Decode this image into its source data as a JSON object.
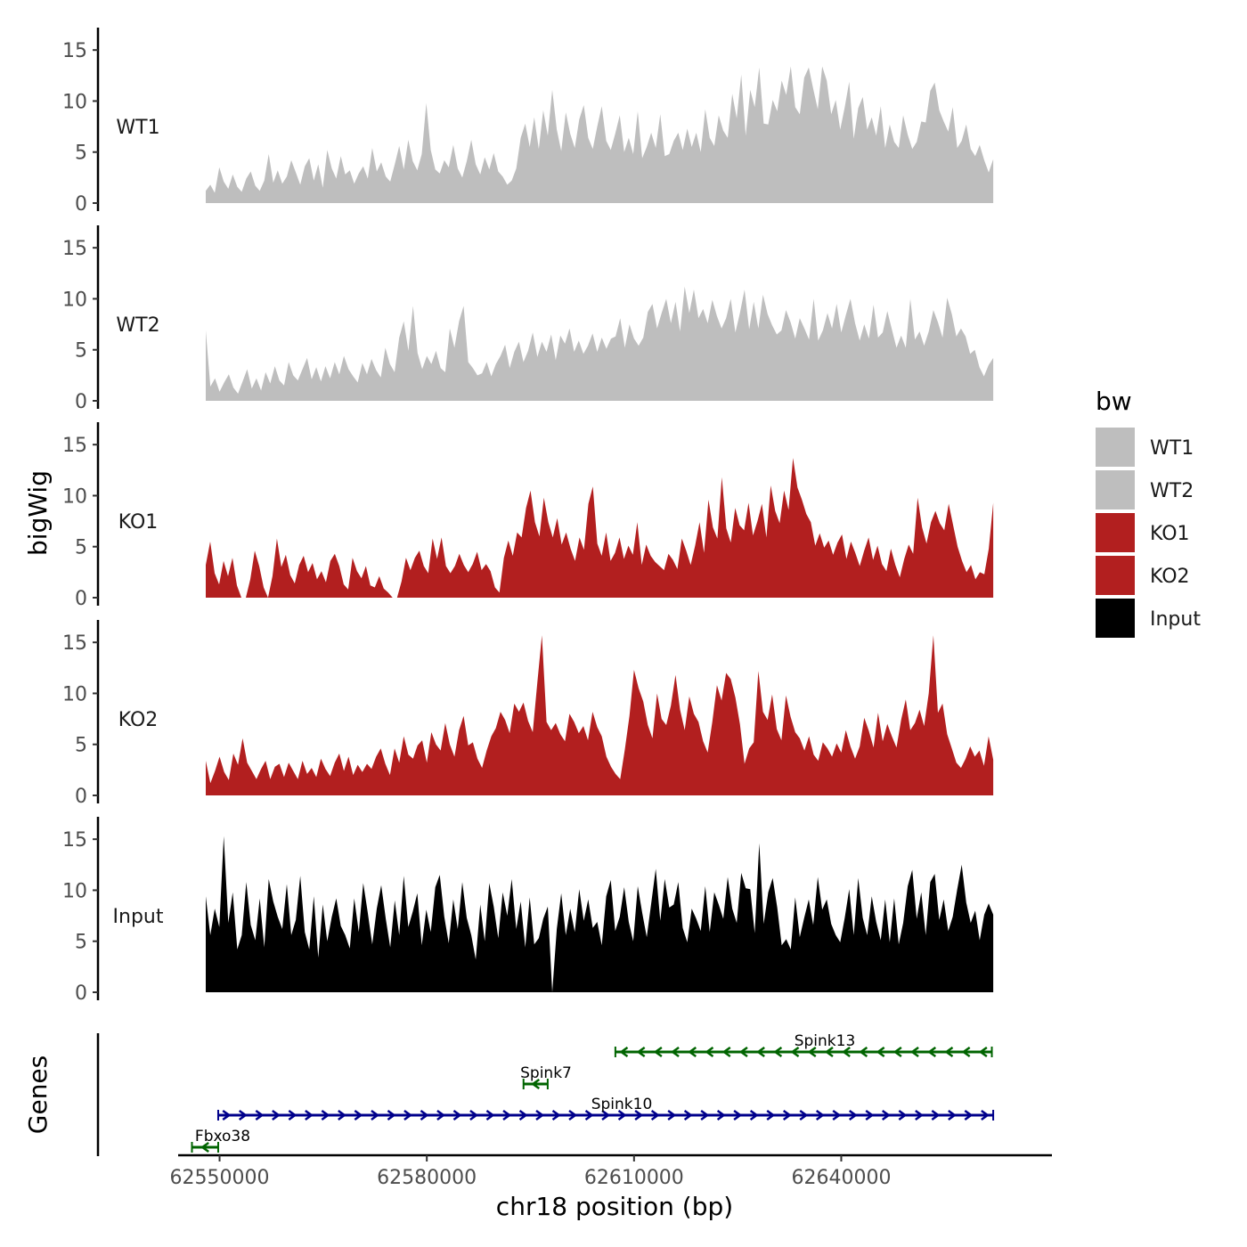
{
  "chart_data": {
    "type": "area",
    "title": "",
    "xlabel": "chr18 position (bp)",
    "ylabel": "bigWig",
    "genes_axis_label": "Genes",
    "xlim": [
      62544000,
      62670500
    ],
    "x_ticks": [
      62550000,
      62580000,
      62610000,
      62640000
    ],
    "x_tick_labels": [
      "62550000",
      "62580000",
      "62610000",
      "62640000"
    ],
    "y_ticks": [
      0,
      5,
      10,
      15
    ],
    "y_tick_labels": [
      "0",
      "5",
      "10",
      "15"
    ],
    "ylim": [
      0,
      16.5
    ],
    "x_start": 62548000,
    "x_end": 62662000,
    "legend": {
      "title": "bw",
      "position": "right",
      "entries": [
        {
          "label": "WT1",
          "color": "#BEBEBE"
        },
        {
          "label": "WT2",
          "color": "#BEBEBE"
        },
        {
          "label": "KO1",
          "color": "#B21F1F"
        },
        {
          "label": "KO2",
          "color": "#B21F1F"
        },
        {
          "label": "Input",
          "color": "#000000"
        }
      ]
    },
    "series": [
      {
        "name": "WT1",
        "color": "#BEBEBE",
        "values": [
          1.2,
          1.8,
          1.0,
          3.5,
          2.1,
          1.4,
          2.8,
          1.6,
          1.1,
          2.4,
          3.1,
          1.7,
          1.2,
          2.2,
          4.8,
          2.0,
          3.2,
          1.9,
          2.6,
          4.2,
          3.0,
          1.8,
          3.6,
          4.4,
          2.2,
          3.8,
          1.5,
          5.2,
          3.4,
          2.4,
          4.6,
          2.8,
          3.2,
          1.9,
          2.9,
          3.6,
          2.4,
          5.4,
          3.1,
          4.0,
          2.6,
          2.1,
          3.8,
          5.6,
          3.3,
          6.2,
          4.1,
          3.2,
          4.8,
          9.8,
          5.2,
          3.3,
          2.9,
          4.2,
          3.5,
          5.7,
          3.4,
          2.5,
          4.1,
          6.2,
          3.8,
          2.8,
          4.5,
          3.3,
          4.9,
          3.1,
          2.6,
          1.8,
          2.2,
          3.4,
          6.4,
          7.8,
          5.5,
          8.4,
          5.3,
          9.1,
          6.6,
          11.1,
          7.2,
          5.1,
          8.9,
          6.8,
          5.4,
          8.2,
          9.6,
          6.4,
          5.3,
          7.5,
          9.5,
          6.1,
          5.2,
          6.8,
          8.6,
          5.0,
          6.4,
          4.8,
          9.0,
          4.4,
          5.5,
          6.9,
          5.4,
          8.7,
          4.6,
          4.8,
          6.1,
          6.9,
          5.2,
          7.3,
          5.5,
          6.9,
          5.0,
          9.2,
          6.4,
          5.6,
          8.6,
          7.1,
          6.4,
          10.7,
          8.3,
          12.6,
          6.6,
          11.1,
          9.4,
          13.3,
          7.8,
          7.7,
          10.1,
          9.0,
          12.0,
          10.6,
          13.4,
          9.4,
          8.7,
          12.3,
          13.3,
          11.2,
          9.2,
          13.4,
          12.0,
          8.7,
          10.1,
          7.2,
          9.4,
          11.9,
          6.3,
          9.3,
          10.4,
          7.2,
          8.4,
          6.6,
          9.5,
          5.4,
          7.7,
          6.0,
          5.4,
          8.6,
          6.7,
          5.3,
          6.0,
          8.0,
          7.9,
          11.0,
          11.8,
          9.1,
          8.0,
          7.0,
          9.4,
          5.4,
          6.1,
          7.7,
          5.3,
          4.6,
          5.7,
          4.2,
          3.0,
          4.3
        ]
      },
      {
        "name": "WT2",
        "color": "#BEBEBE",
        "values": [
          6.9,
          1.4,
          2.2,
          0.9,
          1.8,
          2.6,
          1.3,
          0.7,
          1.9,
          3.1,
          1.2,
          2.2,
          1.0,
          2.8,
          1.7,
          3.4,
          2.0,
          1.5,
          3.8,
          2.5,
          2.0,
          3.1,
          4.2,
          2.1,
          3.3,
          1.9,
          3.4,
          2.2,
          3.8,
          2.6,
          4.4,
          3.1,
          2.4,
          1.8,
          3.7,
          2.6,
          4.1,
          3.0,
          2.3,
          5.2,
          3.6,
          2.8,
          6.2,
          7.8,
          4.9,
          9.3,
          4.7,
          3.1,
          4.4,
          3.6,
          4.9,
          3.2,
          2.8,
          7.1,
          5.2,
          7.8,
          9.3,
          3.8,
          3.2,
          2.5,
          2.7,
          3.8,
          2.4,
          3.6,
          4.4,
          5.5,
          3.2,
          4.8,
          5.8,
          3.8,
          4.9,
          6.7,
          4.3,
          5.8,
          4.8,
          6.5,
          4.0,
          6.4,
          5.6,
          7.1,
          4.8,
          5.9,
          4.6,
          5.4,
          6.6,
          4.8,
          6.2,
          5.1,
          6.1,
          6.3,
          8.1,
          5.2,
          7.5,
          6.1,
          5.4,
          6.2,
          8.7,
          9.5,
          7.1,
          8.6,
          10.0,
          7.6,
          9.7,
          6.8,
          11.2,
          8.6,
          10.9,
          8.1,
          9.0,
          7.6,
          9.9,
          8.3,
          7.1,
          8.1,
          10.0,
          6.7,
          8.6,
          10.9,
          7.0,
          9.7,
          7.1,
          10.4,
          8.5,
          7.4,
          6.5,
          6.9,
          8.9,
          7.7,
          6.1,
          8.1,
          7.1,
          6.0,
          10.0,
          5.9,
          6.9,
          8.6,
          7.1,
          9.5,
          6.7,
          8.4,
          10.0,
          7.6,
          5.9,
          7.5,
          6.1,
          9.4,
          6.2,
          6.7,
          8.8,
          7.0,
          5.2,
          6.4,
          5.2,
          10.0,
          6.0,
          6.8,
          5.4,
          6.8,
          8.9,
          7.7,
          6.2,
          10.1,
          8.5,
          6.3,
          7.1,
          6.3,
          4.6,
          5.0,
          3.3,
          2.4,
          3.5,
          4.2
        ]
      },
      {
        "name": "KO1",
        "color": "#B21F1F",
        "values": [
          3.2,
          5.5,
          2.4,
          1.3,
          3.6,
          2.1,
          3.9,
          1.2,
          0.0,
          0.0,
          1.8,
          4.6,
          3.1,
          1.0,
          0.0,
          2.1,
          5.8,
          3.0,
          4.2,
          2.2,
          1.4,
          3.2,
          4.1,
          2.5,
          3.4,
          1.8,
          2.6,
          1.5,
          3.6,
          4.3,
          3.1,
          1.3,
          0.8,
          3.9,
          2.6,
          1.9,
          3.1,
          1.2,
          1.0,
          2.1,
          0.9,
          0.5,
          0.0,
          0.0,
          1.6,
          3.9,
          2.7,
          3.9,
          4.6,
          3.1,
          2.4,
          5.8,
          3.8,
          5.9,
          3.1,
          2.4,
          3.1,
          4.3,
          3.2,
          2.5,
          3.3,
          4.5,
          2.7,
          3.3,
          2.6,
          1.0,
          0.5,
          3.9,
          5.6,
          4.1,
          6.4,
          5.9,
          8.8,
          10.5,
          7.4,
          6.0,
          9.8,
          7.4,
          5.9,
          7.8,
          5.2,
          6.4,
          4.8,
          3.6,
          5.9,
          4.7,
          9.2,
          10.9,
          5.3,
          4.1,
          6.4,
          3.6,
          4.4,
          5.9,
          3.8,
          5.1,
          4.2,
          7.4,
          3.2,
          5.2,
          4.1,
          3.5,
          3.1,
          2.7,
          4.3,
          3.7,
          2.8,
          5.8,
          4.6,
          3.2,
          5.1,
          7.4,
          4.4,
          9.6,
          6.9,
          5.8,
          11.8,
          6.8,
          5.4,
          8.8,
          7.1,
          6.6,
          9.3,
          6.1,
          7.5,
          9.2,
          5.9,
          11.0,
          8.5,
          7.3,
          10.5,
          8.6,
          13.7,
          10.8,
          9.6,
          8.2,
          7.4,
          5.1,
          6.3,
          4.9,
          5.6,
          4.2,
          5.4,
          6.2,
          3.8,
          5.5,
          4.4,
          3.1,
          4.6,
          5.9,
          3.7,
          5.1,
          3.3,
          2.6,
          4.8,
          3.2,
          2.0,
          3.8,
          5.2,
          4.3,
          9.8,
          6.9,
          5.3,
          7.4,
          8.5,
          7.3,
          6.6,
          9.2,
          7.1,
          5.0,
          3.6,
          2.5,
          3.2,
          1.8,
          2.5,
          2.3,
          4.8,
          9.3
        ]
      },
      {
        "name": "KO2",
        "color": "#B21F1F",
        "values": [
          3.4,
          1.2,
          2.4,
          3.8,
          2.3,
          1.5,
          4.1,
          3.0,
          5.6,
          3.2,
          2.4,
          1.6,
          2.6,
          3.4,
          1.6,
          2.8,
          3.1,
          1.8,
          3.2,
          2.4,
          1.6,
          3.4,
          2.1,
          2.7,
          1.8,
          3.6,
          2.6,
          1.9,
          3.2,
          4.1,
          2.4,
          3.8,
          2.0,
          3.0,
          2.3,
          3.1,
          2.6,
          3.8,
          4.6,
          3.1,
          2.0,
          4.6,
          3.2,
          5.8,
          4.0,
          3.6,
          4.9,
          5.4,
          3.2,
          6.2,
          5.0,
          4.4,
          7.1,
          5.0,
          3.8,
          6.4,
          7.8,
          4.9,
          5.2,
          3.6,
          2.7,
          4.4,
          5.8,
          6.6,
          8.2,
          7.4,
          6.1,
          9.0,
          8.2,
          9.1,
          7.3,
          6.2,
          11.1,
          15.7,
          7.2,
          6.4,
          7.1,
          6.0,
          5.3,
          8.0,
          7.2,
          6.1,
          6.8,
          5.4,
          8.2,
          6.7,
          5.8,
          3.8,
          2.8,
          2.1,
          1.6,
          4.5,
          7.8,
          12.3,
          10.5,
          9.2,
          6.9,
          5.6,
          10.0,
          7.5,
          6.9,
          8.8,
          11.8,
          8.4,
          6.4,
          9.7,
          8.0,
          7.2,
          5.3,
          4.2,
          7.2,
          10.8,
          9.3,
          12.0,
          11.4,
          9.6,
          7.0,
          3.1,
          4.6,
          5.2,
          12.2,
          8.2,
          7.4,
          9.9,
          6.5,
          5.4,
          9.8,
          7.7,
          6.2,
          5.6,
          4.4,
          5.8,
          4.0,
          3.4,
          5.2,
          4.6,
          3.8,
          5.1,
          4.2,
          6.4,
          4.8,
          3.6,
          4.8,
          7.6,
          6.3,
          4.7,
          8.1,
          5.3,
          7.0,
          5.8,
          4.7,
          7.4,
          9.4,
          6.4,
          7.1,
          8.4,
          6.8,
          10.0,
          15.7,
          8.1,
          9.0,
          6.0,
          4.6,
          3.2,
          2.7,
          3.6,
          4.8,
          3.8,
          4.4,
          2.9,
          5.8,
          3.5
        ]
      },
      {
        "name": "Input",
        "color": "#000000",
        "values": [
          9.4,
          5.6,
          8.2,
          6.4,
          15.3,
          6.8,
          9.8,
          4.2,
          5.6,
          10.8,
          6.6,
          5.1,
          9.2,
          4.4,
          11.1,
          8.9,
          7.4,
          6.2,
          10.6,
          5.6,
          7.1,
          11.4,
          5.9,
          4.2,
          9.4,
          3.4,
          8.6,
          5.0,
          7.4,
          9.2,
          6.5,
          5.6,
          4.3,
          9.2,
          5.9,
          10.7,
          7.8,
          4.7,
          8.2,
          10.5,
          7.2,
          4.4,
          9.0,
          5.6,
          11.4,
          6.4,
          7.9,
          9.7,
          4.6,
          8.1,
          5.9,
          10.3,
          11.5,
          7.4,
          4.8,
          9.1,
          6.2,
          10.8,
          7.3,
          5.6,
          3.2,
          8.6,
          5.0,
          10.7,
          8.4,
          5.3,
          9.8,
          7.5,
          11.1,
          6.2,
          8.9,
          4.4,
          9.3,
          4.7,
          5.3,
          7.2,
          8.4,
          0.0,
          6.2,
          9.7,
          5.6,
          8.2,
          5.9,
          10.1,
          7.0,
          9.1,
          6.3,
          6.9,
          4.6,
          9.4,
          11.0,
          6.0,
          7.4,
          10.3,
          6.9,
          5.0,
          10.4,
          7.8,
          5.4,
          8.7,
          12.1,
          7.0,
          11.1,
          8.3,
          8.6,
          10.8,
          6.3,
          4.9,
          8.2,
          7.2,
          6.0,
          10.4,
          5.9,
          9.8,
          8.6,
          7.2,
          11.3,
          8.2,
          6.8,
          11.7,
          10.2,
          10.1,
          5.8,
          14.6,
          6.7,
          9.8,
          11.2,
          8.3,
          4.6,
          5.2,
          4.2,
          9.3,
          5.4,
          7.3,
          9.1,
          6.6,
          11.3,
          8.1,
          9.1,
          6.7,
          5.6,
          4.9,
          7.3,
          10.1,
          5.6,
          11.2,
          7.3,
          5.6,
          9.4,
          6.9,
          5.1,
          9.1,
          4.9,
          9.2,
          4.7,
          6.8,
          10.4,
          12.0,
          7.2,
          9.8,
          5.6,
          10.8,
          11.6,
          7.1,
          9.1,
          6.0,
          7.4,
          10.1,
          12.5,
          8.8,
          6.8,
          8.0,
          5.1,
          7.6,
          8.7,
          7.6
        ]
      }
    ],
    "genes": [
      {
        "name": "Spink13",
        "start": 62607300,
        "end": 62661800,
        "strand": "-",
        "color": "#006400",
        "row": 0
      },
      {
        "name": "Spink7",
        "start": 62594000,
        "end": 62597500,
        "strand": "-",
        "color": "#006400",
        "row": 1
      },
      {
        "name": "Spink10",
        "start": 62549800,
        "end": 62662000,
        "strand": "+",
        "color": "#00008B",
        "row": 2
      },
      {
        "name": "Fbxo38",
        "start": 62546000,
        "end": 62549800,
        "strand": "-",
        "color": "#006400",
        "row": 3
      }
    ]
  }
}
